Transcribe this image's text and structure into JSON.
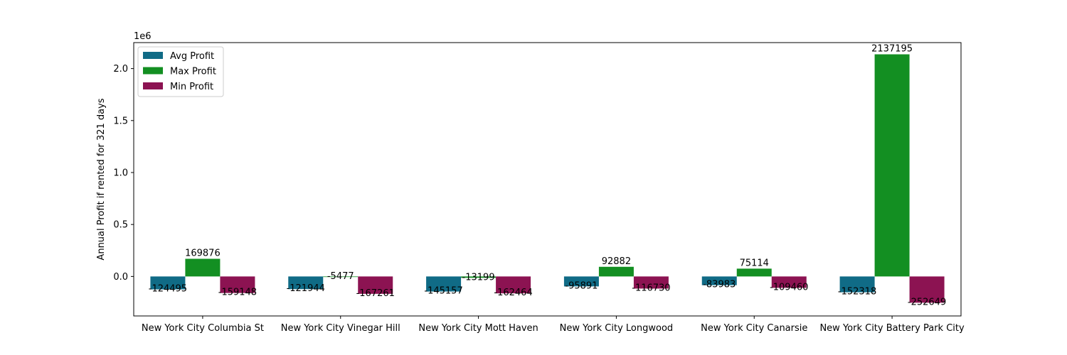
{
  "chart_data": {
    "type": "bar",
    "title": "",
    "xlabel": "",
    "ylabel": "Annual Profit if rented for 321 days",
    "offset_label": "1e6",
    "categories": [
      "New York City Columbia St",
      "New York City Vinegar Hill",
      "New York City Mott Haven",
      "New York City Longwood",
      "New York City Canarsie",
      "New York City Battery Park City"
    ],
    "series": [
      {
        "name": "Avg Profit",
        "color": "#106b86",
        "values": [
          -124495,
          -121944,
          -145157,
          -95891,
          -83983,
          -152318
        ]
      },
      {
        "name": "Max Profit",
        "color": "#138f22",
        "values": [
          169876,
          -5477,
          -13199,
          92882,
          75114,
          2137195
        ]
      },
      {
        "name": "Min Profit",
        "color": "#8c1352",
        "values": [
          -159148,
          -167261,
          -162464,
          -116730,
          -109460,
          -252649
        ]
      }
    ],
    "ylim": [
      -380000,
      2250000
    ],
    "yticks": [
      0,
      500000,
      1000000,
      1500000,
      2000000
    ],
    "ytick_labels": [
      "0.0",
      "0.5",
      "1.0",
      "1.5",
      "2.0"
    ],
    "legend_position": "top-left",
    "grid": false
  }
}
